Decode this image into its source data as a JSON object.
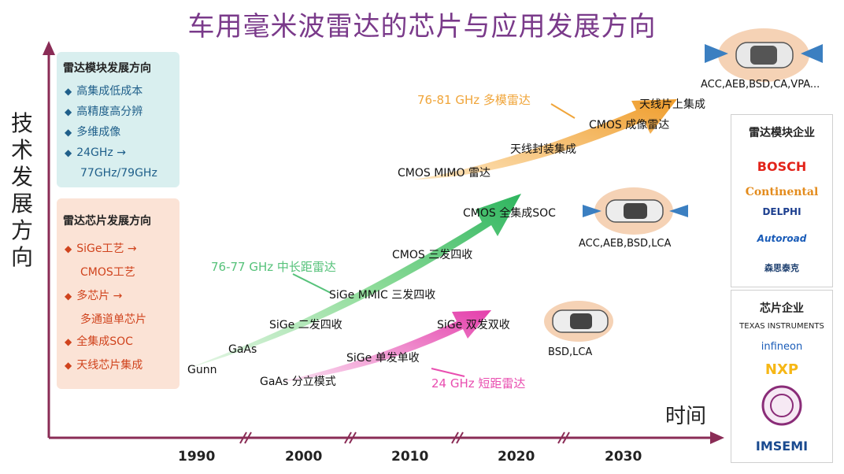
{
  "title": "车用毫米波雷达的芯片与应用发展方向",
  "y_axis_label": "技术发展方向",
  "x_axis_label": "时间",
  "years": [
    "1990",
    "2000",
    "2010",
    "2020",
    "2030"
  ],
  "module_box": {
    "title": "雷达模块发展方向",
    "items": [
      "高集成低成本",
      "高精度高分辨",
      "多维成像",
      "24GHz →",
      "77GHz/79GHz"
    ]
  },
  "chip_box": {
    "title": "雷达芯片发展方向",
    "items": [
      "SiGe工艺 →",
      "CMOS工艺",
      "多芯片 →",
      "多通道单芯片",
      "全集成SOC",
      "天线芯片集成"
    ]
  },
  "green_arrow": {
    "band": "76-77 GHz 中长距雷达",
    "labels": [
      "Gunn",
      "GaAs",
      "SiGe 二发四收",
      "SiGe MMIC 三发四收",
      "CMOS 三发四收",
      "CMOS 全集成SOC"
    ]
  },
  "pink_arrow": {
    "band": "24 GHz 短距雷达",
    "labels": [
      "GaAs 分立模式",
      "SiGe 单发单收",
      "SiGe 双发双收"
    ]
  },
  "orange_arrow": {
    "band": "76-81 GHz 多模雷达",
    "labels": [
      "CMOS MIMO 雷达",
      "天线封装集成",
      "CMOS 成像雷达",
      "天线片上集成"
    ]
  },
  "car_captions": [
    "ACC,AEB,BSD,CA,VPA...",
    "ACC,AEB,BSD,LCA",
    "BSD,LCA"
  ],
  "module_companies": {
    "title": "雷达模块企业",
    "logos": [
      "BOSCH",
      "Continental",
      "DELPHI",
      "Autoroad",
      "森思泰克"
    ]
  },
  "chip_companies": {
    "title": "芯片企业",
    "logos": [
      "TEXAS INSTRUMENTS",
      "infineon",
      "NXP",
      "IMSEMI"
    ]
  },
  "colors": {
    "title": "#7a3a8a",
    "green": "#56c27a",
    "pink": "#e94eb0",
    "orange": "#f0a53a",
    "axis": "#8a2c56"
  }
}
